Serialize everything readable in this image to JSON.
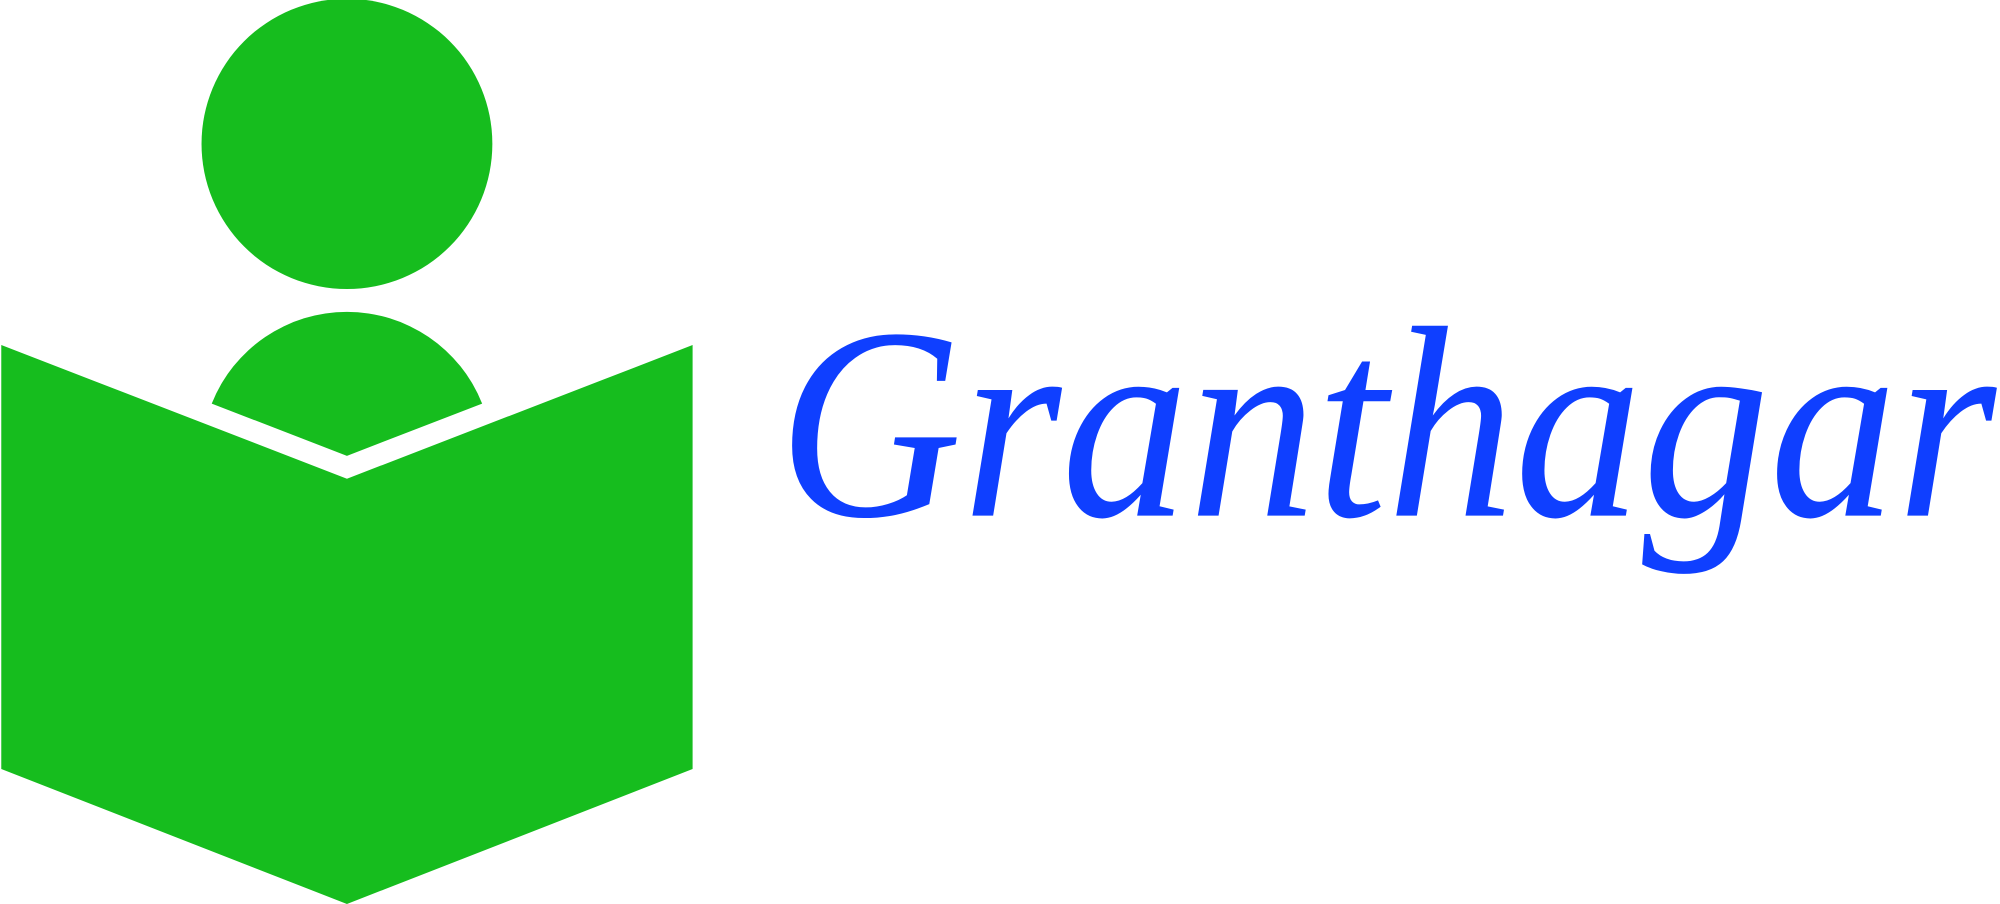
{
  "brand": {
    "name": "Granthagar"
  }
}
